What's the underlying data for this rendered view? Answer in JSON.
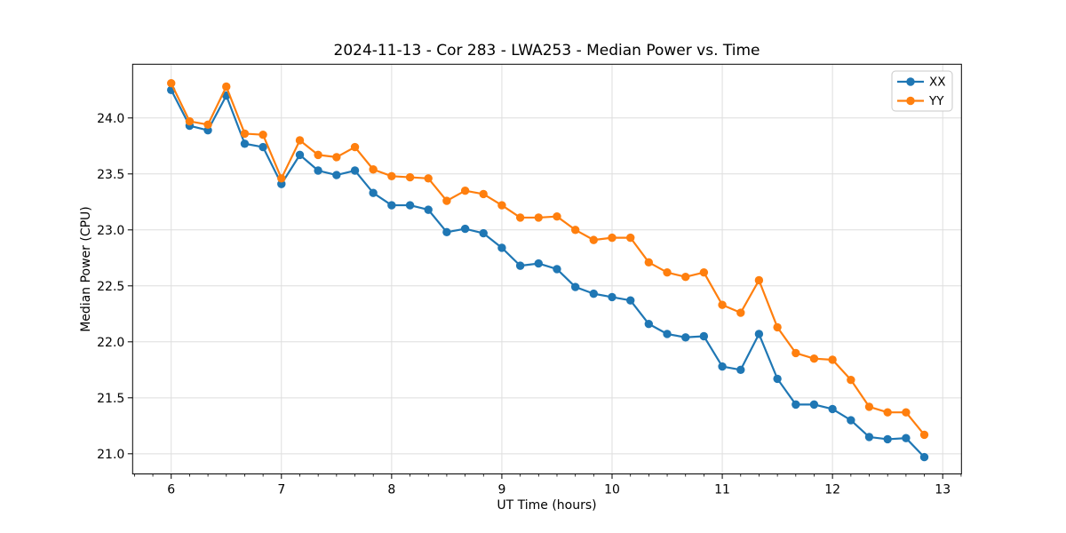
{
  "window": {
    "title": "2024-11-13 - Cor 283 - LWA253 - Median Power vs. Time"
  },
  "chart_data": {
    "type": "line",
    "title": "2024-11-13 - Cor 283 - LWA253 - Median Power vs. Time",
    "xlabel": "UT Time (hours)",
    "ylabel": "Median Power (CPU)",
    "xlim": [
      5.65,
      13.17
    ],
    "ylim": [
      20.82,
      24.48
    ],
    "x_major_ticks": [
      6,
      7,
      8,
      9,
      10,
      11,
      12,
      13
    ],
    "x_minor_step": 0.16667,
    "y_major_ticks": [
      21.0,
      21.5,
      22.0,
      22.5,
      23.0,
      23.5,
      24.0
    ],
    "grid": true,
    "grid_color": "#dedede",
    "legend_position": "upper right",
    "marker": "circle",
    "x": [
      6.0,
      6.167,
      6.333,
      6.5,
      6.667,
      6.833,
      7.0,
      7.167,
      7.333,
      7.5,
      7.667,
      7.833,
      8.0,
      8.167,
      8.333,
      8.5,
      8.667,
      8.833,
      9.0,
      9.167,
      9.333,
      9.5,
      9.667,
      9.833,
      10.0,
      10.167,
      10.333,
      10.5,
      10.667,
      10.833,
      11.0,
      11.167,
      11.333,
      11.5,
      11.667,
      11.833,
      12.0,
      12.167,
      12.333,
      12.5,
      12.667,
      12.833
    ],
    "series": [
      {
        "name": "XX",
        "color": "#1f77b4",
        "values": [
          24.25,
          23.93,
          23.89,
          24.2,
          23.77,
          23.74,
          23.41,
          23.67,
          23.53,
          23.49,
          23.53,
          23.33,
          23.22,
          23.22,
          23.18,
          22.98,
          23.01,
          22.97,
          22.84,
          22.68,
          22.7,
          22.65,
          22.49,
          22.43,
          22.4,
          22.37,
          22.16,
          22.07,
          22.04,
          22.05,
          21.78,
          21.75,
          22.07,
          21.67,
          21.44,
          21.44,
          21.4,
          21.3,
          21.15,
          21.13,
          21.14,
          20.97
        ]
      },
      {
        "name": "YY",
        "color": "#ff7f0e",
        "values": [
          24.31,
          23.97,
          23.94,
          24.28,
          23.86,
          23.85,
          23.46,
          23.8,
          23.67,
          23.65,
          23.74,
          23.54,
          23.48,
          23.47,
          23.46,
          23.26,
          23.35,
          23.32,
          23.22,
          23.11,
          23.11,
          23.12,
          23.0,
          22.91,
          22.93,
          22.93,
          22.71,
          22.62,
          22.58,
          22.62,
          22.33,
          22.26,
          22.55,
          22.13,
          21.9,
          21.85,
          21.84,
          21.66,
          21.42,
          21.37,
          21.37,
          21.17
        ]
      }
    ]
  },
  "legend": {
    "items": [
      {
        "label": "XX",
        "color": "#1f77b4"
      },
      {
        "label": "YY",
        "color": "#ff7f0e"
      }
    ]
  }
}
